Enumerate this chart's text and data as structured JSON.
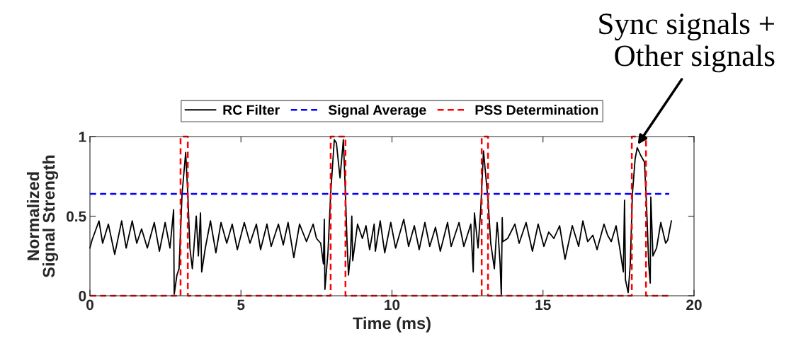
{
  "chart_data": {
    "type": "line",
    "xlabel": "Time (ms)",
    "ylabel": "Normalized\nSignal Strength",
    "xlim": [
      0,
      20
    ],
    "ylim": [
      0,
      1
    ],
    "xticks": [
      0,
      5,
      10,
      15,
      20
    ],
    "yticks": [
      0,
      0.5,
      1
    ],
    "grid": false,
    "legend": "top",
    "marker": "none",
    "series": [
      {
        "name": "RC Filter",
        "color": "#000000",
        "line_style": "solid",
        "x": [
          0.0,
          0.07,
          0.3,
          0.42,
          0.61,
          0.82,
          1.05,
          1.2,
          1.4,
          1.55,
          1.71,
          1.9,
          2.13,
          2.3,
          2.49,
          2.65,
          2.77,
          2.79,
          2.88,
          2.95,
          3.05,
          3.17,
          3.24,
          3.31,
          3.39,
          3.52,
          3.59,
          3.66,
          3.7,
          3.82,
          3.99,
          4.17,
          4.34,
          4.53,
          4.71,
          4.88,
          5.11,
          5.3,
          5.51,
          5.65,
          5.86,
          6.0,
          6.24,
          6.4,
          6.56,
          6.75,
          6.94,
          7.17,
          7.39,
          7.5,
          7.64,
          7.73,
          7.76,
          7.78,
          7.88,
          7.97,
          8.09,
          8.16,
          8.28,
          8.39,
          8.46,
          8.51,
          8.56,
          8.63,
          8.67,
          8.7,
          8.86,
          9.02,
          9.14,
          9.26,
          9.41,
          9.45,
          9.61,
          9.76,
          9.96,
          10.12,
          10.39,
          10.55,
          10.74,
          10.9,
          11.09,
          11.25,
          11.44,
          11.6,
          11.84,
          11.96,
          12.22,
          12.38,
          12.61,
          12.69,
          12.73,
          12.85,
          12.94,
          13.03,
          13.18,
          13.27,
          13.39,
          13.48,
          13.51,
          13.58,
          13.62,
          13.65,
          13.67,
          13.83,
          14.07,
          14.21,
          14.44,
          14.65,
          14.84,
          15.03,
          15.19,
          15.36,
          15.55,
          15.73,
          15.97,
          16.18,
          16.32,
          16.48,
          16.65,
          16.79,
          17.02,
          17.14,
          17.26,
          17.42,
          17.54,
          17.66,
          17.7,
          17.73,
          17.82,
          17.89,
          17.96,
          18.05,
          18.12,
          18.24,
          18.36,
          18.43,
          18.5,
          18.55,
          18.57,
          18.64,
          18.76,
          18.9,
          19.06,
          19.13,
          19.25
        ],
        "values": [
          0.3,
          0.35,
          0.47,
          0.33,
          0.45,
          0.26,
          0.47,
          0.3,
          0.47,
          0.33,
          0.42,
          0.3,
          0.46,
          0.28,
          0.46,
          0.3,
          0.54,
          0.01,
          0.13,
          0.17,
          0.64,
          0.9,
          0.64,
          0.3,
          0.17,
          0.5,
          0.25,
          0.52,
          0.15,
          0.3,
          0.47,
          0.27,
          0.46,
          0.33,
          0.45,
          0.29,
          0.46,
          0.33,
          0.45,
          0.29,
          0.45,
          0.31,
          0.45,
          0.32,
          0.46,
          0.24,
          0.45,
          0.34,
          0.45,
          0.36,
          0.33,
          0.2,
          0.48,
          0.04,
          0.27,
          0.64,
          0.98,
          0.96,
          0.74,
          0.98,
          0.64,
          0.35,
          0.13,
          0.27,
          0.5,
          0.22,
          0.45,
          0.36,
          0.44,
          0.29,
          0.45,
          0.28,
          0.47,
          0.27,
          0.46,
          0.3,
          0.48,
          0.31,
          0.44,
          0.29,
          0.46,
          0.31,
          0.43,
          0.28,
          0.46,
          0.31,
          0.46,
          0.31,
          0.45,
          0.15,
          0.52,
          0.3,
          0.55,
          0.91,
          0.6,
          0.33,
          0.17,
          0.46,
          0.4,
          0.2,
          0.0,
          0.49,
          0.34,
          0.36,
          0.45,
          0.33,
          0.46,
          0.28,
          0.45,
          0.31,
          0.4,
          0.36,
          0.44,
          0.23,
          0.44,
          0.31,
          0.47,
          0.34,
          0.38,
          0.29,
          0.45,
          0.38,
          0.34,
          0.44,
          0.3,
          0.15,
          0.6,
          0.1,
          0.02,
          0.2,
          0.64,
          0.86,
          0.93,
          0.88,
          0.84,
          0.56,
          0.2,
          0.08,
          0.62,
          0.25,
          0.3,
          0.46,
          0.33,
          0.35,
          0.47
        ]
      },
      {
        "name": "Signal Average",
        "color": "#0000ff",
        "line_style": "dashed",
        "x": [
          0,
          19.18
        ],
        "values": [
          0.64,
          0.64
        ]
      },
      {
        "name": "PSS Determination",
        "color": "#ff0000",
        "line_style": "dashed",
        "x": [
          0,
          3.0,
          3.0,
          3.24,
          3.24,
          7.97,
          7.97,
          8.46,
          8.46,
          12.97,
          12.97,
          13.18,
          13.18,
          17.94,
          17.94,
          18.41,
          18.41,
          19.25
        ],
        "values": [
          0,
          0,
          1,
          1,
          0,
          0,
          1,
          1,
          0,
          0,
          1,
          1,
          0,
          0,
          1,
          1,
          0,
          0
        ]
      }
    ],
    "annotations": [
      {
        "text": "Sync signals +\nOther signals",
        "x": 18.1,
        "y": 0.94
      }
    ]
  }
}
